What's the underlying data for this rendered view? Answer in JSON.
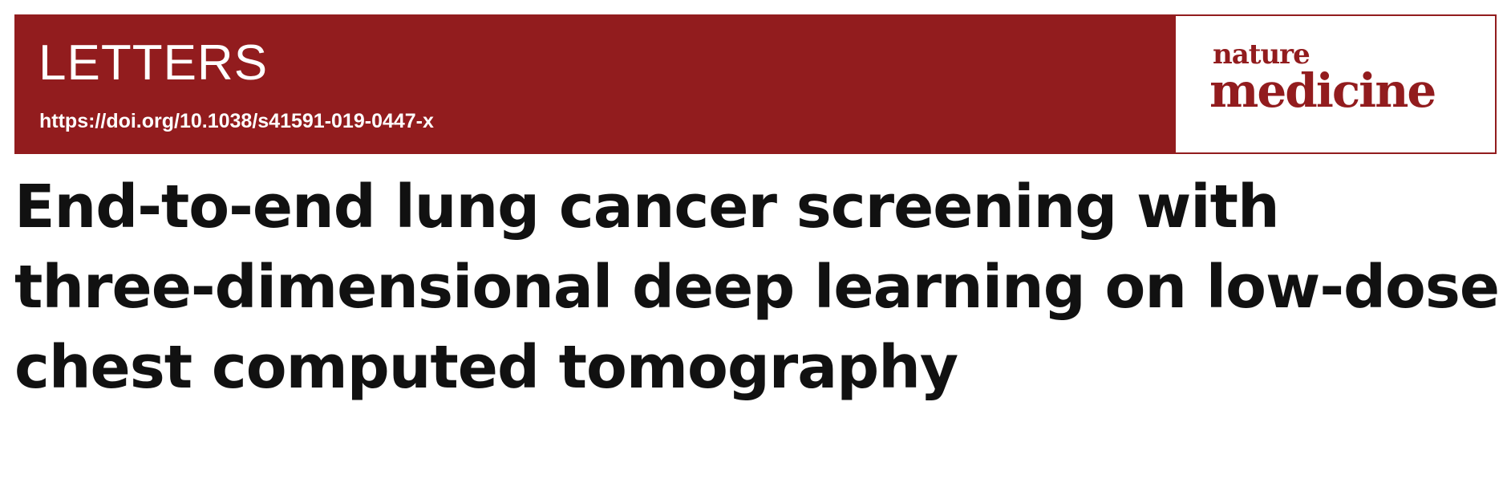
{
  "header": {
    "section_label": "LETTERS",
    "doi": "https://doi.org/10.1038/s41591-019-0447-x",
    "band_color": "#921c1e"
  },
  "journal_logo": {
    "line1": "nature",
    "line2": "medicine",
    "color": "#921c1e"
  },
  "article": {
    "title_lines": [
      "End-to-end lung cancer screening with",
      "three-dimensional deep learning on low-dose",
      "chest computed tomography"
    ]
  }
}
